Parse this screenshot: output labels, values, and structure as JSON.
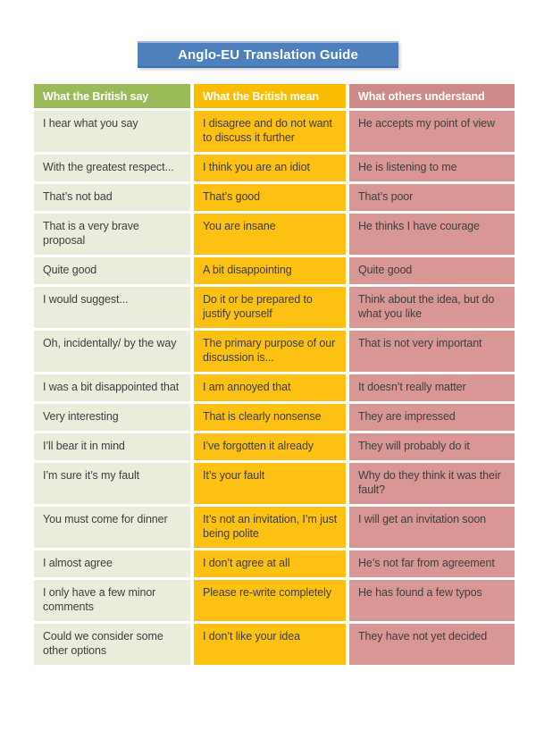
{
  "title_banner": {
    "text": "Anglo-EU Translation Guide"
  },
  "table": {
    "headers": [
      {
        "label": "What the British say"
      },
      {
        "label": "What the British mean"
      },
      {
        "label": "What others understand"
      }
    ],
    "rows": [
      {
        "say": "I hear what you say",
        "mean": "I disagree and do not want to discuss it further",
        "understand": "He accepts my point of view"
      },
      {
        "say": "With the greatest respect...",
        "mean": "I think you are an idiot",
        "understand": "He is listening to me"
      },
      {
        "say": "That’s not bad",
        "mean": "That’s good",
        "understand": "That’s poor"
      },
      {
        "say": "That is a very brave proposal",
        "mean": "You are insane",
        "understand": "He thinks I have courage"
      },
      {
        "say": "Quite good",
        "mean": "A bit disappointing",
        "understand": "Quite good"
      },
      {
        "say": "I would suggest...",
        "mean": "Do it or be prepared to justify yourself",
        "understand": "Think about the idea, but do what you like"
      },
      {
        "say": "Oh, incidentally/ by the way",
        "mean": "The primary purpose of our discussion is...",
        "understand": "That is not very important"
      },
      {
        "say": "I was a bit disappointed that",
        "mean": "I am annoyed that",
        "understand": "It doesn’t really matter"
      },
      {
        "say": "Very interesting",
        "mean": "That is clearly nonsense",
        "understand": "They are impressed"
      },
      {
        "say": "I’ll bear it in mind",
        "mean": "I’ve forgotten it already",
        "understand": "They will probably do it"
      },
      {
        "say": "I’m sure it’s my fault",
        "mean": "It’s your fault",
        "understand": "Why do they think it was their fault?"
      },
      {
        "say": "You must come for dinner",
        "mean": "It’s not an invitation, I’m just being polite",
        "understand": "I will get an invitation soon"
      },
      {
        "say": "I almost agree",
        "mean": "I don’t agree at all",
        "understand": "He’s not far from agreement"
      },
      {
        "say": "I only have a few minor comments",
        "mean": "Please re-write completely",
        "understand": "He has found a few typos"
      },
      {
        "say": "Could we consider some other options",
        "mean": "I don’t like your idea",
        "understand": "They have not yet decided"
      }
    ]
  },
  "colors": {
    "banner_blue": "#4d80bc",
    "banner_top": "#9db9dd",
    "banner_bottom": "#3e6da8",
    "header_green": "#9bbb59",
    "header_amber": "#fcbd00",
    "header_rose": "#cd8a88",
    "cell_green": "#e8eedb",
    "cell_amber": "#fdc113",
    "cell_rose": "#d89794",
    "body_text": "#3e3e3e",
    "header_text": "#ffffff"
  }
}
